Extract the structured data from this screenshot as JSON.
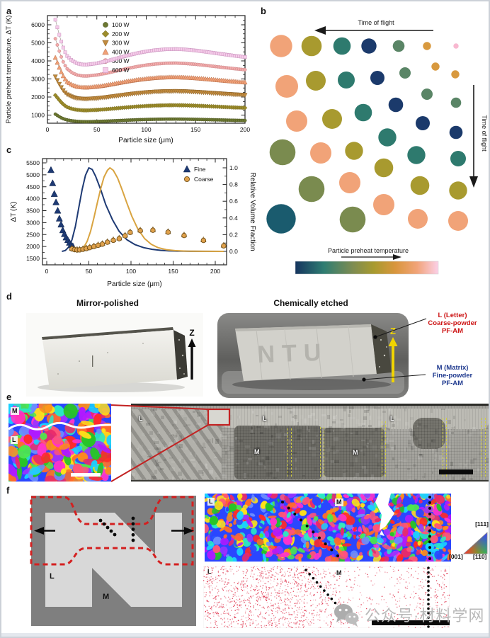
{
  "panels": {
    "a": "a",
    "b": "b",
    "c": "c",
    "d": "d",
    "e": "e",
    "f": "f"
  },
  "chart_data": [
    {
      "panel": "a",
      "type": "scatter",
      "title": "",
      "xlabel": "Particle size (μm)",
      "ylabel": "Particle preheat temperature, ΔT (K)",
      "xlim": [
        0,
        200
      ],
      "ylim": [
        400,
        6450
      ],
      "xticks": [
        0,
        50,
        100,
        150,
        200
      ],
      "yticks": [
        1000,
        2000,
        3000,
        4000,
        5000,
        6000
      ],
      "grid": false,
      "legend_position": "upper-left-inside",
      "x_samples": [
        8,
        10,
        12,
        14,
        16,
        18,
        20,
        25,
        30,
        35,
        40,
        50,
        60,
        70,
        80,
        90,
        100,
        110,
        120,
        130,
        140,
        150,
        160,
        170,
        180,
        190,
        200
      ],
      "series": [
        {
          "name": "100 W",
          "marker": "circle",
          "color": "#6C7832",
          "edge": "#474F1D",
          "values": [
            1050,
            980,
            910,
            850,
            800,
            760,
            730,
            680,
            650,
            635,
            630,
            645,
            665,
            690,
            715,
            738,
            755,
            768,
            775,
            777,
            772,
            762,
            750,
            736,
            722,
            710,
            700
          ]
        },
        {
          "name": "200 W",
          "marker": "diamond",
          "color": "#9C8C2B",
          "edge": "#6B5F17",
          "values": [
            2100,
            1965,
            1830,
            1705,
            1600,
            1510,
            1440,
            1340,
            1290,
            1265,
            1260,
            1285,
            1325,
            1375,
            1425,
            1468,
            1502,
            1527,
            1542,
            1546,
            1538,
            1520,
            1496,
            1470,
            1444,
            1420,
            1400
          ]
        },
        {
          "name": "300 W",
          "marker": "triangle-down",
          "color": "#C08A3E",
          "edge": "#8A5F24",
          "values": [
            3130,
            2925,
            2720,
            2535,
            2370,
            2245,
            2140,
            2005,
            1930,
            1900,
            1895,
            1930,
            1990,
            2065,
            2140,
            2205,
            2258,
            2296,
            2318,
            2324,
            2310,
            2283,
            2249,
            2211,
            2173,
            2140,
            2110
          ]
        },
        {
          "name": "400 W",
          "marker": "triangle-up",
          "color": "#F0A077",
          "edge": "#B86F4A",
          "values": [
            4180,
            3905,
            3630,
            3380,
            3160,
            2985,
            2845,
            2670,
            2575,
            2535,
            2530,
            2575,
            2655,
            2755,
            2855,
            2942,
            3010,
            3062,
            3090,
            3096,
            3078,
            3044,
            2998,
            2948,
            2898,
            2852,
            2810
          ]
        },
        {
          "name": "500 W",
          "marker": "circle",
          "color": "#F2ABAB",
          "edge": "#C47B7E",
          "values": [
            5230,
            4885,
            4540,
            4225,
            3950,
            3735,
            3560,
            3340,
            3220,
            3168,
            3162,
            3220,
            3320,
            3445,
            3570,
            3680,
            3768,
            3833,
            3872,
            3880,
            3855,
            3810,
            3752,
            3688,
            3625,
            3565,
            3510
          ]
        },
        {
          "name": "600 W",
          "marker": "square",
          "color": "#F5CBE9",
          "edge": "#C992BD",
          "values": [
            6280,
            5865,
            5450,
            5070,
            4740,
            4480,
            4270,
            4005,
            3865,
            3800,
            3795,
            3865,
            3985,
            4135,
            4285,
            4418,
            4522,
            4600,
            4645,
            4658,
            4630,
            4575,
            4508,
            4430,
            4355,
            4280,
            4215
          ]
        }
      ]
    },
    {
      "panel": "b",
      "type": "bubble",
      "top_arrow_label": "Time of flight",
      "right_arrow_label": "Time of flight",
      "colorbar_label": "Particle preheat temperature",
      "colorbar_stops": [
        "#16355F",
        "#2F7D72",
        "#7D8C52",
        "#A89A2F",
        "#D9963D",
        "#F1A378",
        "#FBD0E8"
      ],
      "palette": {
        "salmon": "#F1A378",
        "olive": "#A89A2F",
        "teal": "#2E7A6E",
        "navy": "#1B3A6B",
        "green": "#5A8566",
        "tan": "#D8993E",
        "pink": "#F8B8D0",
        "oliveGreen": "#7A8B4F",
        "darkTeal": "#1A5B6E"
      },
      "bubbles": [
        [
          27,
          63,
          15.7,
          "salmon"
        ],
        [
          70,
          63,
          14.3,
          "olive"
        ],
        [
          113,
          63,
          12.3,
          "teal"
        ],
        [
          151,
          63,
          10.7,
          "navy"
        ],
        [
          193,
          63,
          8.3,
          "green"
        ],
        [
          233,
          63,
          5.7,
          "tan"
        ],
        [
          274,
          63,
          3.7,
          "pink"
        ],
        [
          35,
          120,
          16,
          "salmon"
        ],
        [
          76,
          112,
          14,
          "olive"
        ],
        [
          119,
          111,
          12,
          "teal"
        ],
        [
          163,
          108,
          10,
          "navy"
        ],
        [
          202,
          101,
          8,
          "green"
        ],
        [
          245,
          92,
          5.7,
          "tan"
        ],
        [
          273,
          103,
          5.7,
          "tan"
        ],
        [
          49,
          169,
          15,
          "salmon"
        ],
        [
          99,
          166,
          14,
          "olive"
        ],
        [
          143,
          157,
          12.3,
          "teal"
        ],
        [
          189,
          146,
          10.3,
          "navy"
        ],
        [
          233,
          131,
          8,
          "green"
        ],
        [
          274,
          143,
          7.3,
          "green"
        ],
        [
          29,
          213,
          18.3,
          "oliveGreen"
        ],
        [
          83,
          214,
          15,
          "salmon"
        ],
        [
          130,
          211,
          12.7,
          "olive"
        ],
        [
          177,
          192,
          12.7,
          "teal"
        ],
        [
          227,
          172,
          10,
          "navy"
        ],
        [
          274,
          185,
          9.3,
          "navy"
        ],
        [
          70,
          265,
          18.3,
          "oliveGreen"
        ],
        [
          124,
          256,
          15,
          "salmon"
        ],
        [
          172,
          235,
          13.3,
          "olive"
        ],
        [
          218,
          217,
          12.7,
          "teal"
        ],
        [
          277,
          222,
          11,
          "teal"
        ],
        [
          27,
          307,
          20.7,
          "darkTeal"
        ],
        [
          128,
          308,
          18.3,
          "oliveGreen"
        ],
        [
          172,
          287,
          15,
          "salmon"
        ],
        [
          223,
          260,
          13.3,
          "olive"
        ],
        [
          277,
          267,
          12.7,
          "olive"
        ],
        [
          220,
          307,
          14,
          "salmon"
        ],
        [
          277,
          310,
          14,
          "salmon"
        ]
      ]
    },
    {
      "panel": "c",
      "type": "line-scatter",
      "xlabel": "Particle size (μm)",
      "ylabel_left": "ΔT (K)",
      "ylabel_right": "Relative Volume Fraction",
      "xlim": [
        0,
        215
      ],
      "ylim_left": [
        1500,
        5500
      ],
      "ylim_right": [
        0,
        1.0
      ],
      "xticks": [
        0,
        50,
        100,
        150,
        200
      ],
      "yticks_left": [
        1500,
        2000,
        2500,
        3000,
        3500,
        4000,
        4500,
        5000,
        5500
      ],
      "yticks_right": [
        "0.0",
        "0.2",
        "0.4",
        "0.6",
        "0.8",
        "1.0"
      ],
      "legend": [
        {
          "label": "Fine",
          "marker": "triangle-up",
          "color": "#1E3A74"
        },
        {
          "label": "Coarse",
          "marker": "circle",
          "color": "#DFA14C"
        }
      ],
      "fine_color": "#1E3A74",
      "coarse_color": "#D9A441",
      "fine_scatter": [
        [
          5,
          5200
        ],
        [
          7,
          4650
        ],
        [
          9,
          4200
        ],
        [
          11,
          3850
        ],
        [
          13,
          3500
        ],
        [
          15,
          3170
        ],
        [
          17,
          2920
        ],
        [
          19,
          2680
        ],
        [
          21,
          2520
        ],
        [
          23,
          2380
        ],
        [
          25,
          2270
        ],
        [
          27,
          2160
        ],
        [
          29,
          2070
        ],
        [
          31,
          2010
        ]
      ],
      "coarse_scatter": [
        [
          30,
          1900
        ],
        [
          33,
          1870
        ],
        [
          36,
          1855
        ],
        [
          39,
          1860
        ],
        [
          43,
          1885
        ],
        [
          47,
          1915
        ],
        [
          51,
          1955
        ],
        [
          56,
          2000
        ],
        [
          61,
          2050
        ],
        [
          66,
          2100
        ],
        [
          72,
          2180
        ],
        [
          79,
          2260
        ],
        [
          86,
          2330
        ],
        [
          93,
          2450
        ],
        [
          99,
          2590
        ],
        [
          111,
          2665
        ],
        [
          126,
          2680
        ],
        [
          144,
          2600
        ],
        [
          163,
          2460
        ],
        [
          186,
          2255
        ],
        [
          210,
          2030
        ]
      ],
      "fine_curve_rvf": [
        [
          18,
          0
        ],
        [
          22,
          0.01
        ],
        [
          26,
          0.05
        ],
        [
          30,
          0.14
        ],
        [
          34,
          0.3
        ],
        [
          38,
          0.52
        ],
        [
          42,
          0.74
        ],
        [
          46,
          0.91
        ],
        [
          50,
          1.0
        ],
        [
          54,
          0.98
        ],
        [
          58,
          0.9
        ],
        [
          64,
          0.74
        ],
        [
          70,
          0.56
        ],
        [
          78,
          0.38
        ],
        [
          86,
          0.24
        ],
        [
          95,
          0.14
        ],
        [
          105,
          0.08
        ],
        [
          115,
          0.045
        ],
        [
          125,
          0.025
        ],
        [
          135,
          0.013
        ],
        [
          145,
          0.007
        ],
        [
          155,
          0.003
        ],
        [
          170,
          0.001
        ],
        [
          210,
          0
        ]
      ],
      "coarse_curve_rvf": [
        [
          36,
          0
        ],
        [
          40,
          0.015
        ],
        [
          44,
          0.05
        ],
        [
          48,
          0.12
        ],
        [
          52,
          0.24
        ],
        [
          56,
          0.4
        ],
        [
          60,
          0.58
        ],
        [
          64,
          0.75
        ],
        [
          68,
          0.89
        ],
        [
          72,
          0.97
        ],
        [
          75,
          1.0
        ],
        [
          79,
          0.97
        ],
        [
          84,
          0.88
        ],
        [
          89,
          0.75
        ],
        [
          95,
          0.58
        ],
        [
          101,
          0.42
        ],
        [
          108,
          0.27
        ],
        [
          116,
          0.155
        ],
        [
          124,
          0.085
        ],
        [
          132,
          0.045
        ],
        [
          142,
          0.02
        ],
        [
          152,
          0.009
        ],
        [
          165,
          0.003
        ],
        [
          185,
          0.001
        ],
        [
          210,
          0
        ]
      ]
    }
  ],
  "panel_d": {
    "left_title": "Mirror-polished",
    "right_title": "Chemically etched",
    "z_label": "Z",
    "etched_letters": "NTU",
    "annotation_top": {
      "color": "#CC1111",
      "lines": [
        "L (Letter)",
        "Coarse-powder",
        "PF-AM"
      ]
    },
    "annotation_bottom": {
      "color": "#1F3A8F",
      "lines": [
        "M (Matrix)",
        "Fine-powder",
        "PF-AM"
      ]
    }
  },
  "panel_e": {
    "m_label": "M",
    "l_label": "L",
    "ipf_palette": [
      "#FF2A2A",
      "#2A46FF",
      "#27C427",
      "#FF33CC",
      "#9933FF",
      "#FF8C1A",
      "#FFE01A",
      "#1AD1FF",
      "#FF5577",
      "#4DE84D",
      "#B01AFF",
      "#FF6B2A",
      "#2AE8C4",
      "#E82A6B",
      "#6B8CFF"
    ]
  },
  "panel_f": {
    "l_label": "L",
    "m_label": "M",
    "ipf_legend": {
      "top": "[111]",
      "bottom_left": "[001]",
      "bottom_right": "[110]"
    },
    "speckle_color": "#E0354E"
  },
  "watermark": {
    "text": "公众号·材料学网"
  }
}
